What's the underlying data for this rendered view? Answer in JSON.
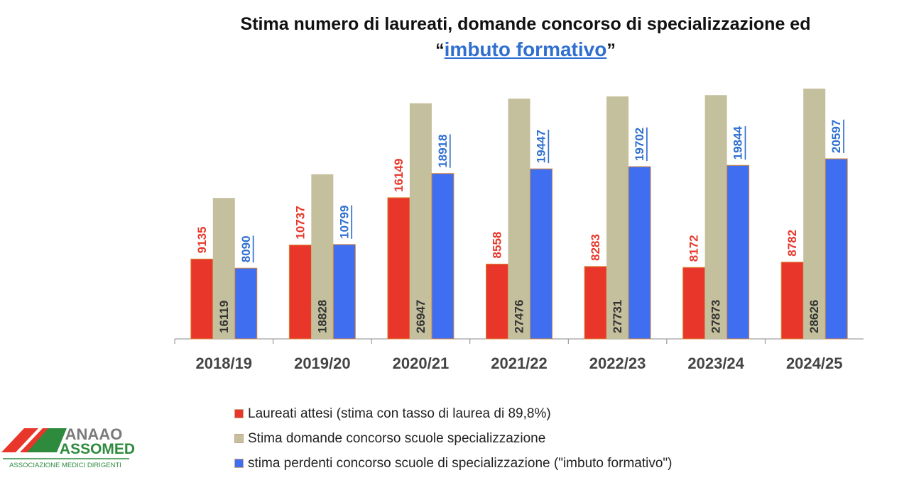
{
  "title_line1": "Stima numero di laureati, domande concorso di specializzazione ed",
  "title_quote_open": "“",
  "title_highlight": "imbuto formativo",
  "title_quote_close": "”",
  "colors": {
    "laureati": "#e8372a",
    "domande": "#c4bf9d",
    "perdenti": "#3f6ff0",
    "laureati_label": "#e8372a",
    "domande_label": "#333333",
    "perdenti_label": "#2f6fd0"
  },
  "chart_data": {
    "type": "bar",
    "categories": [
      "2018/19",
      "2019/20",
      "2020/21",
      "2021/22",
      "2022/23",
      "2023/24",
      "2024/25"
    ],
    "series": [
      {
        "name": "Laureati attesi (stima con tasso di laurea di 89,8%)",
        "values": [
          9135,
          10737,
          16149,
          8558,
          8283,
          8172,
          8782
        ]
      },
      {
        "name": "Stima domande concorso scuole specializzazione",
        "values": [
          16119,
          18828,
          26947,
          27476,
          27731,
          27873,
          28626
        ]
      },
      {
        "name": "stima perdenti concorso scuole di specializzazione (\"imbuto formativo\")",
        "values": [
          8090,
          10799,
          18918,
          19447,
          19702,
          19844,
          20597
        ]
      }
    ],
    "ylim": [
      0,
      30000
    ],
    "grid": false,
    "legend_position": "bottom"
  },
  "logo": {
    "line1": "ANAAO",
    "line2": "ASSOMED",
    "line3": "ASSOCIAZIONE MEDICI DIRIGENTI"
  }
}
